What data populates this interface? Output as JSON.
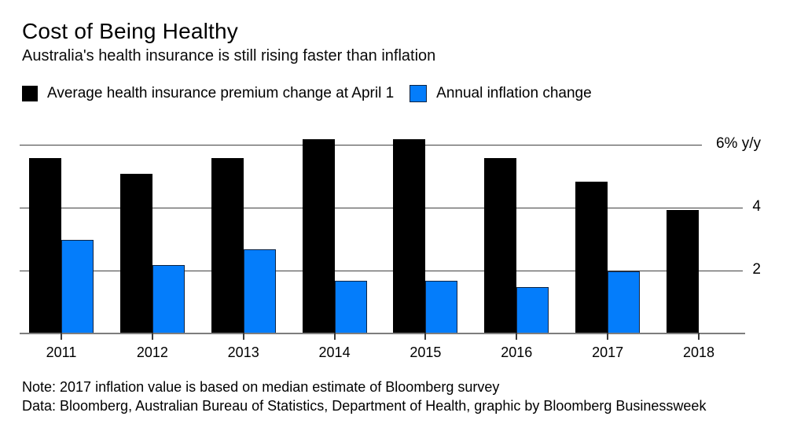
{
  "header": {
    "title": "Cost of Being Healthy",
    "subtitle": "Australia's health insurance is still rising faster than inflation"
  },
  "legend": [
    {
      "label": "Average health insurance premium change at April 1",
      "color": "#000000",
      "icon": "black-square-swatch"
    },
    {
      "label": "Annual inflation change",
      "color": "#047dfb",
      "icon": "blue-square-swatch"
    }
  ],
  "chart_data": {
    "type": "bar",
    "categories": [
      "2011",
      "2012",
      "2013",
      "2014",
      "2015",
      "2016",
      "2017",
      "2018"
    ],
    "series": [
      {
        "name": "Average health insurance premium change at April 1",
        "color": "#000000",
        "values": [
          5.6,
          5.1,
          5.6,
          6.2,
          6.2,
          5.6,
          4.85,
          3.95
        ]
      },
      {
        "name": "Annual inflation change",
        "color": "#047dfb",
        "values": [
          3.0,
          2.2,
          2.7,
          1.7,
          1.7,
          1.5,
          2.0,
          null
        ]
      }
    ],
    "title": "Cost of Being Healthy",
    "subtitle": "Australia's health insurance is still rising faster than inflation",
    "xlabel": "",
    "ylabel": "% y/y",
    "ylim": [
      0,
      6.5
    ],
    "yticks": [
      {
        "value": 6,
        "label": "6% y/y"
      },
      {
        "value": 4,
        "label": "4"
      },
      {
        "value": 2,
        "label": "2"
      }
    ],
    "grid": true,
    "legend_position": "top"
  },
  "footer": {
    "note": "Note: 2017 inflation value is based on median estimate of Bloomberg survey",
    "source": "Data: Bloomberg, Australian Bureau of Statistics, Department of Health, graphic by Bloomberg Businessweek"
  },
  "colors": {
    "premium_bar": "#000000",
    "inflation_bar": "#047dfb",
    "gridline": "#404040",
    "axis_line": "#7d7d7d",
    "background": "#ffffff"
  }
}
